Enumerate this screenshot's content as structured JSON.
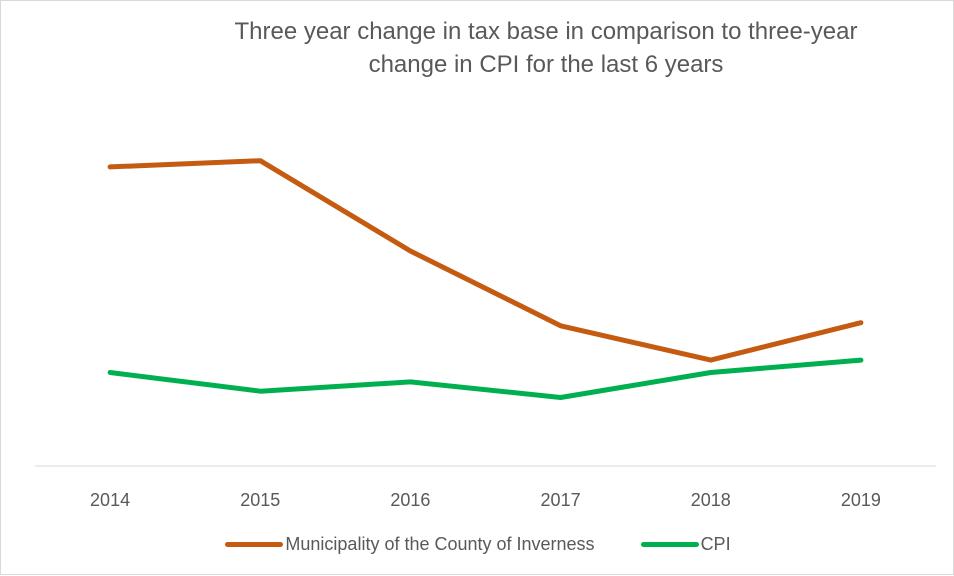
{
  "chart_data": {
    "type": "line",
    "title_lines": [
      "Three year change in tax base in comparison to three-year",
      "change in CPI for the last 6 years"
    ],
    "categories": [
      "2014",
      "2015",
      "2016",
      "2017",
      "2018",
      "2019"
    ],
    "series": [
      {
        "name": "Municipality of the County of Inverness",
        "color": "#C55A11",
        "values": [
          9.0,
          9.2,
          6.3,
          3.9,
          2.8,
          4.0
        ]
      },
      {
        "name": "CPI",
        "color": "#00B050",
        "values": [
          2.4,
          1.8,
          2.1,
          1.6,
          2.4,
          2.8
        ]
      }
    ],
    "ylim": [
      -0.6,
      12.4
    ],
    "y_axis_visible": false,
    "gridlines": false,
    "legend_position": "bottom"
  }
}
